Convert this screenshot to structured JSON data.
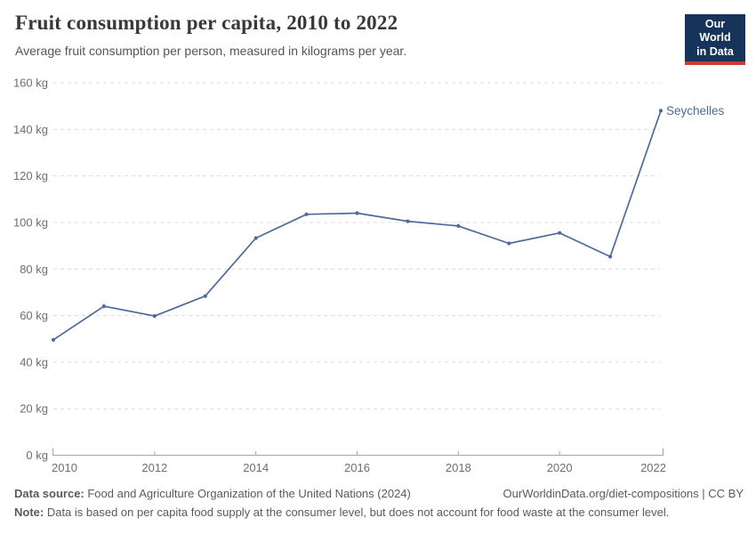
{
  "header": {
    "title": "Fruit consumption per capita, 2010 to 2022",
    "subtitle": "Average fruit consumption per person, measured in kilograms per year.",
    "logo": {
      "line1": "Our World",
      "line2": "in Data",
      "bg_color": "#16335a",
      "stripe_color": "#cc3b2d"
    }
  },
  "chart_data": {
    "type": "line",
    "title": "Fruit consumption per capita, 2010 to 2022",
    "subtitle": "Average fruit consumption per person, measured in kilograms per year.",
    "x": [
      2010,
      2011,
      2012,
      2013,
      2014,
      2015,
      2016,
      2017,
      2018,
      2019,
      2020,
      2021,
      2022
    ],
    "series": [
      {
        "name": "Seychelles",
        "color": "#4c6a9c",
        "values": [
          49.6,
          64,
          59.8,
          68.4,
          93.3,
          103.5,
          104,
          100.5,
          98.5,
          91,
          95.5,
          85.3,
          148
        ]
      }
    ],
    "unit": "kg",
    "xlim": [
      2010,
      2022
    ],
    "ylim": [
      0,
      160
    ],
    "x_ticks": [
      2010,
      2012,
      2014,
      2016,
      2018,
      2020,
      2022
    ],
    "y_ticks": [
      0,
      20,
      40,
      60,
      80,
      100,
      120,
      140,
      160
    ],
    "y_tick_suffix": " kg",
    "grid": "horizontal-dashed",
    "legend": "end-of-line-label",
    "gridline_color": "#dcdcdc",
    "axis_color": "#a6a6a6",
    "tick_label_color": "#6e6e6e"
  },
  "footer": {
    "datasource_label": "Data source:",
    "datasource_text": " Food and Agriculture Organization of the United Nations (2024)",
    "attribution": "OurWorldinData.org/diet-compositions | CC BY",
    "note_label": "Note:",
    "note_text": " Data is based on per capita food supply at the consumer level, but does not account for food waste at the consumer level."
  }
}
